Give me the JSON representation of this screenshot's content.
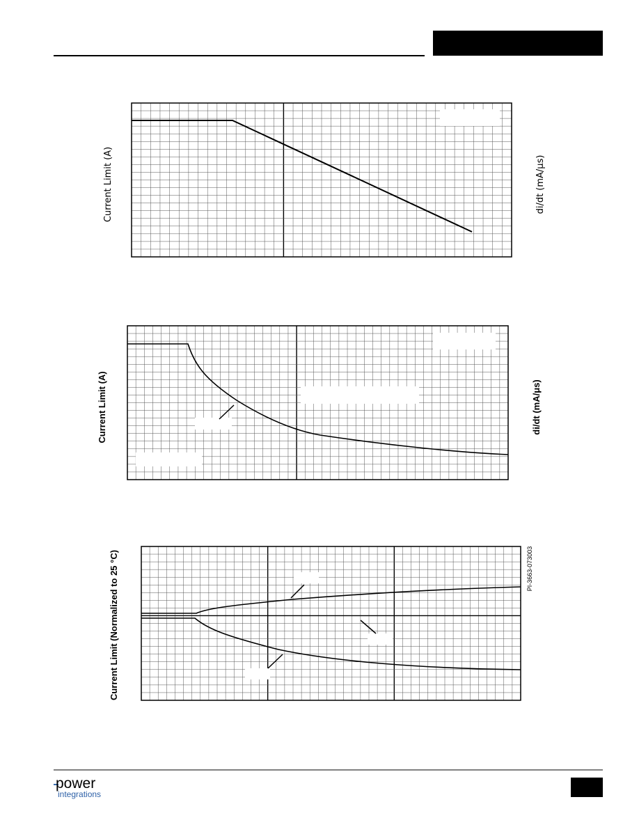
{
  "graphs": [
    {
      "y_axis_label": "Current Limit (A)",
      "right_label": "di/dt (mA/μs)"
    },
    {
      "y_axis_label": "Current Limit (A)",
      "right_label": "di/dt (mA/μs)"
    },
    {
      "y_axis_label": "Current Limit (Normalized to 25 °C)",
      "code": "PI-3663-073003"
    }
  ],
  "footer": {
    "logo_top": "power",
    "logo_bottom": "integrations"
  }
}
